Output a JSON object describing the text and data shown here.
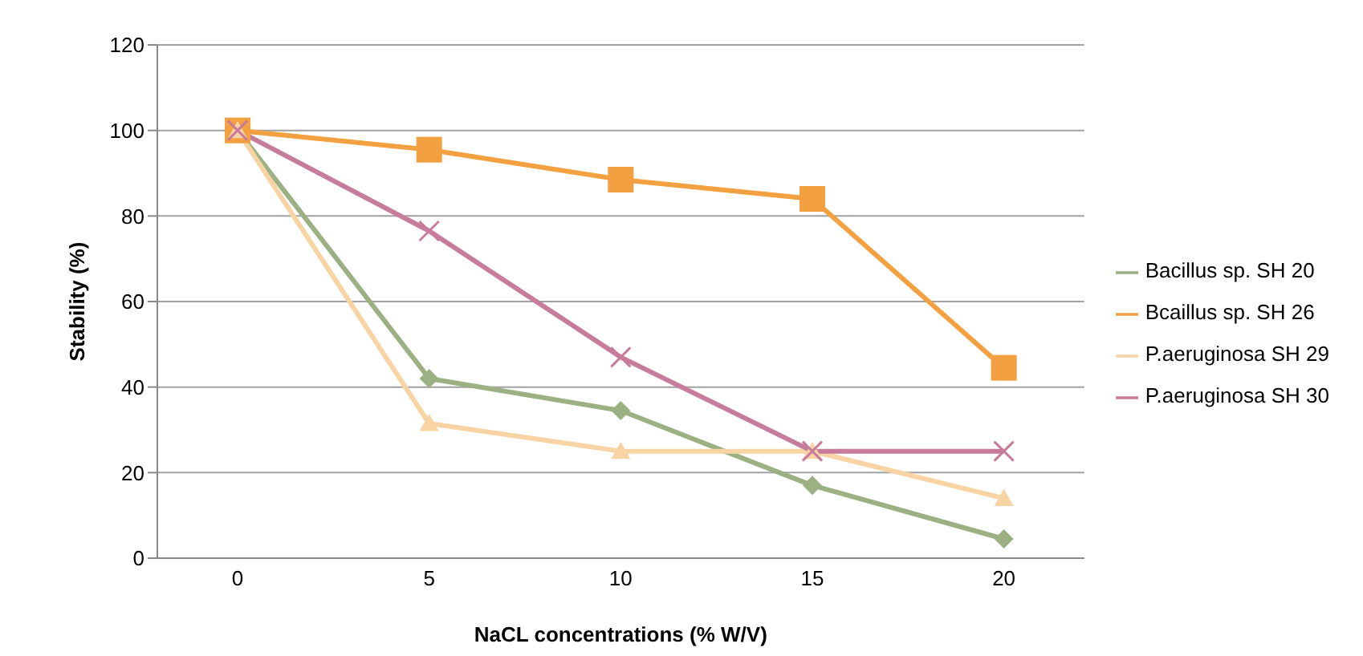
{
  "chart_data": {
    "type": "line",
    "xlabel": "NaCL concentrations (% W/V)",
    "ylabel": "Stability (%)",
    "categories": [
      "0",
      "5",
      "10",
      "15",
      "20"
    ],
    "series": [
      {
        "name": "Bacillus sp. SH 20",
        "color": "#9bb083",
        "marker": "diamond",
        "values": [
          100,
          42,
          34.5,
          17,
          4.5
        ]
      },
      {
        "name": "Bcaillus sp. SH 26",
        "color": "#f2a040",
        "marker": "square",
        "values": [
          100,
          95.5,
          88.5,
          84,
          44.5
        ]
      },
      {
        "name": "P.aeruginosa SH 29",
        "color": "#f8d3a4",
        "marker": "triangle",
        "values": [
          100,
          31.5,
          25,
          25,
          14
        ]
      },
      {
        "name": "P.aeruginosa SH 30",
        "color": "#c87c9c",
        "marker": "cross",
        "values": [
          100,
          76.5,
          47,
          25,
          25
        ]
      }
    ],
    "ylim": [
      0,
      120
    ],
    "yticks": [
      0,
      20,
      40,
      60,
      80,
      100,
      120
    ],
    "grid": "y",
    "legend": "right"
  }
}
